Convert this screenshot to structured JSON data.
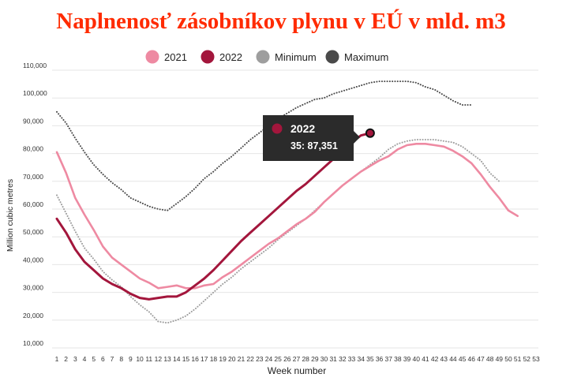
{
  "chart_data": {
    "type": "line",
    "title": "Naplnenosť zásobníkov plynu v EÚ v mld. m3",
    "xlabel": "Week number",
    "ylabel": "Million cubic metres",
    "x": [
      1,
      2,
      3,
      4,
      5,
      6,
      7,
      8,
      9,
      10,
      11,
      12,
      13,
      14,
      15,
      16,
      17,
      18,
      19,
      20,
      21,
      22,
      23,
      24,
      25,
      26,
      27,
      28,
      29,
      30,
      31,
      32,
      33,
      34,
      35,
      36,
      37,
      38,
      39,
      40,
      41,
      42,
      43,
      44,
      45,
      46,
      47,
      48,
      49,
      50,
      51,
      52,
      53
    ],
    "xlim": [
      1,
      53
    ],
    "ylim": [
      10000,
      110000
    ],
    "yticks": [
      10000,
      20000,
      30000,
      40000,
      50000,
      60000,
      70000,
      80000,
      90000,
      100000,
      110000
    ],
    "ytick_labels": [
      "10,000",
      "20,000",
      "30,000",
      "40,000",
      "50,000",
      "60,000",
      "70,000",
      "80,000",
      "90,000",
      "100,000",
      "110,000"
    ],
    "grid": true,
    "legend_position": "top",
    "series": [
      {
        "name": "2021",
        "color": "#EE8AA2",
        "style": "solid",
        "marker": "filled-circle",
        "values": [
          80500,
          73000,
          64000,
          58000,
          52500,
          46500,
          42500,
          40000,
          37500,
          35000,
          33500,
          31500,
          32000,
          32500,
          31500,
          31500,
          32500,
          33000,
          35500,
          37500,
          40000,
          42500,
          45000,
          47500,
          49500,
          52000,
          54500,
          56500,
          59000,
          62500,
          65500,
          68500,
          71000,
          73500,
          75500,
          77500,
          79000,
          81500,
          83000,
          83500,
          83500,
          83000,
          82500,
          81000,
          79000,
          76500,
          72500,
          68000,
          64000,
          59500,
          57500,
          null,
          null
        ]
      },
      {
        "name": "2022",
        "color": "#A3163C",
        "style": "solid",
        "marker": "filled-circle",
        "values": [
          56500,
          51500,
          45500,
          41000,
          38000,
          35000,
          33000,
          31500,
          29500,
          28000,
          27500,
          28000,
          28500,
          28500,
          30000,
          32500,
          35000,
          38000,
          41500,
          45000,
          48500,
          51500,
          54500,
          57500,
          60500,
          63500,
          66500,
          69000,
          72000,
          75000,
          78000,
          81000,
          84000,
          86500,
          87351,
          null,
          null,
          null,
          null,
          null,
          null,
          null,
          null,
          null,
          null,
          null,
          null,
          null,
          null,
          null,
          null,
          null,
          null
        ]
      },
      {
        "name": "Minimum",
        "color": "#9E9E9E",
        "style": "dotted",
        "marker": "filled-circle",
        "values": [
          65000,
          58500,
          52000,
          46000,
          42000,
          37500,
          34500,
          32000,
          28500,
          25500,
          23000,
          19500,
          19000,
          20000,
          21500,
          24000,
          27000,
          30000,
          33000,
          35500,
          38500,
          41000,
          43500,
          46000,
          49000,
          51500,
          54000,
          56500,
          59500,
          62500,
          65500,
          68500,
          71000,
          73500,
          76000,
          78500,
          81500,
          83500,
          84500,
          85000,
          85000,
          85000,
          84500,
          84000,
          82500,
          80000,
          77500,
          73000,
          70000,
          null,
          null,
          null,
          null
        ]
      },
      {
        "name": "Maximum",
        "color": "#4A4A4A",
        "style": "dotted",
        "marker": "filled-circle",
        "values": [
          95000,
          91000,
          85500,
          80500,
          76000,
          72500,
          69500,
          67000,
          64000,
          62500,
          61000,
          60000,
          59500,
          62000,
          64500,
          67500,
          71000,
          73500,
          76500,
          79000,
          82000,
          85000,
          87500,
          90000,
          92500,
          94500,
          96500,
          98000,
          99500,
          100000,
          101500,
          102500,
          103500,
          104500,
          105500,
          106000,
          106000,
          106000,
          106000,
          105500,
          104000,
          103000,
          101000,
          99000,
          97500,
          97500,
          null,
          null,
          null,
          null,
          null,
          null,
          null
        ]
      }
    ],
    "tooltip": {
      "series": "2022",
      "week": 35,
      "value_label": "35: 87,351"
    }
  }
}
